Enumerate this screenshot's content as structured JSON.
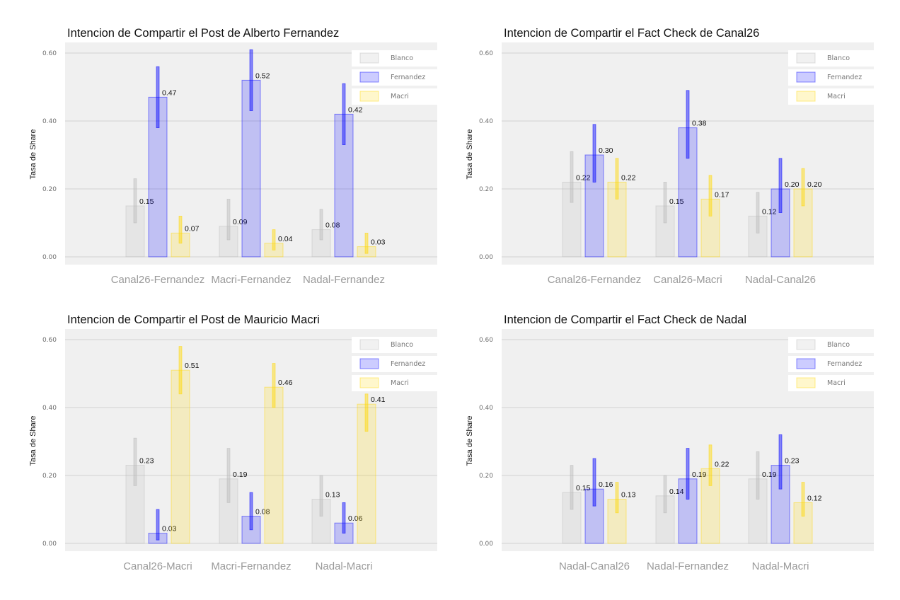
{
  "chart_data": [
    {
      "type": "bar",
      "title": "Intencion de Compartir el Post de Alberto Fernandez",
      "ylabel": "Tasa de Share",
      "ylim": [
        0,
        0.6
      ],
      "yticks": [
        "0.00",
        "0.20",
        "0.40",
        "0.60"
      ],
      "categories": [
        "Canal26-Fernandez",
        "Macri-Fernandez",
        "Nadal-Fernandez"
      ],
      "legend_position": "top-right",
      "grid": true,
      "series": [
        {
          "name": "Blanco",
          "color": "#bbbbbb",
          "values": [
            0.15,
            0.09,
            0.08
          ],
          "labels": [
            "0.15",
            "0.09",
            "0.08"
          ],
          "ci": [
            [
              0.1,
              0.23
            ],
            [
              0.05,
              0.17
            ],
            [
              0.05,
              0.14
            ]
          ]
        },
        {
          "name": "Fernandez",
          "color": "#0000ff",
          "values": [
            0.47,
            0.52,
            0.42
          ],
          "labels": [
            "0.47",
            "0.52",
            "0.42"
          ],
          "ci": [
            [
              0.38,
              0.56
            ],
            [
              0.43,
              0.61
            ],
            [
              0.33,
              0.51
            ]
          ]
        },
        {
          "name": "Macri",
          "color": "#ffd700",
          "values": [
            0.07,
            0.04,
            0.03
          ],
          "labels": [
            "0.07",
            "0.04",
            "0.03"
          ],
          "ci": [
            [
              0.04,
              0.12
            ],
            [
              0.02,
              0.08
            ],
            [
              0.01,
              0.07
            ]
          ]
        }
      ]
    },
    {
      "type": "bar",
      "title": "Intencion de Compartir el Fact Check de Canal26",
      "ylabel": "Tasa de Share",
      "ylim": [
        0,
        0.6
      ],
      "yticks": [
        "0.00",
        "0.20",
        "0.40",
        "0.60"
      ],
      "categories": [
        "Canal26-Fernandez",
        "Canal26-Macri",
        "Nadal-Canal26"
      ],
      "legend_position": "top-right",
      "grid": true,
      "series": [
        {
          "name": "Blanco",
          "color": "#bbbbbb",
          "values": [
            0.22,
            0.15,
            0.12
          ],
          "labels": [
            "0.22",
            "0.15",
            "0.12"
          ],
          "ci": [
            [
              0.16,
              0.31
            ],
            [
              0.1,
              0.22
            ],
            [
              0.07,
              0.19
            ]
          ]
        },
        {
          "name": "Fernandez",
          "color": "#0000ff",
          "values": [
            0.3,
            0.38,
            0.2
          ],
          "labels": [
            "0.30",
            "0.38",
            "0.20"
          ],
          "ci": [
            [
              0.22,
              0.39
            ],
            [
              0.29,
              0.49
            ],
            [
              0.13,
              0.29
            ]
          ]
        },
        {
          "name": "Macri",
          "color": "#ffd700",
          "values": [
            0.22,
            0.17,
            0.2
          ],
          "labels": [
            "0.22",
            "0.17",
            "0.20"
          ],
          "ci": [
            [
              0.17,
              0.29
            ],
            [
              0.12,
              0.24
            ],
            [
              0.15,
              0.26
            ]
          ]
        }
      ]
    },
    {
      "type": "bar",
      "title": "Intencion de Compartir el Post de Mauricio Macri",
      "ylabel": "Tasa de Share",
      "ylim": [
        0,
        0.6
      ],
      "yticks": [
        "0.00",
        "0.20",
        "0.40",
        "0.60"
      ],
      "categories": [
        "Canal26-Macri",
        "Macri-Fernandez",
        "Nadal-Macri"
      ],
      "legend_position": "top-right",
      "grid": true,
      "series": [
        {
          "name": "Blanco",
          "color": "#bbbbbb",
          "values": [
            0.23,
            0.19,
            0.13
          ],
          "labels": [
            "0.23",
            "0.19",
            "0.13"
          ],
          "ci": [
            [
              0.17,
              0.31
            ],
            [
              0.12,
              0.28
            ],
            [
              0.08,
              0.2
            ]
          ]
        },
        {
          "name": "Fernandez",
          "color": "#0000ff",
          "values": [
            0.03,
            0.08,
            0.06
          ],
          "labels": [
            "0.03",
            "0.08",
            "0.06"
          ],
          "ci": [
            [
              0.01,
              0.1
            ],
            [
              0.04,
              0.15
            ],
            [
              0.03,
              0.12
            ]
          ]
        },
        {
          "name": "Macri",
          "color": "#ffd700",
          "values": [
            0.51,
            0.46,
            0.41
          ],
          "labels": [
            "0.51",
            "0.46",
            "0.41"
          ],
          "ci": [
            [
              0.44,
              0.58
            ],
            [
              0.4,
              0.53
            ],
            [
              0.33,
              0.44
            ]
          ]
        }
      ]
    },
    {
      "type": "bar",
      "title": "Intencion de Compartir el Fact Check de Nadal",
      "ylabel": "Tasa de Share",
      "ylim": [
        0,
        0.6
      ],
      "yticks": [
        "0.00",
        "0.20",
        "0.40",
        "0.60"
      ],
      "categories": [
        "Nadal-Canal26",
        "Nadal-Fernandez",
        "Nadal-Macri"
      ],
      "legend_position": "top-right",
      "grid": true,
      "series": [
        {
          "name": "Blanco",
          "color": "#bbbbbb",
          "values": [
            0.15,
            0.14,
            0.19
          ],
          "labels": [
            "0.15",
            "0.14",
            "0.19"
          ],
          "ci": [
            [
              0.1,
              0.23
            ],
            [
              0.09,
              0.2
            ],
            [
              0.13,
              0.27
            ]
          ]
        },
        {
          "name": "Fernandez",
          "color": "#0000ff",
          "values": [
            0.16,
            0.19,
            0.23
          ],
          "labels": [
            "0.16",
            "0.19",
            "0.23"
          ],
          "ci": [
            [
              0.11,
              0.25
            ],
            [
              0.13,
              0.28
            ],
            [
              0.16,
              0.32
            ]
          ]
        },
        {
          "name": "Macri",
          "color": "#ffd700",
          "values": [
            0.13,
            0.22,
            0.12
          ],
          "labels": [
            "0.13",
            "0.22",
            "0.12"
          ],
          "ci": [
            [
              0.09,
              0.18
            ],
            [
              0.17,
              0.29
            ],
            [
              0.08,
              0.18
            ]
          ]
        }
      ]
    }
  ]
}
